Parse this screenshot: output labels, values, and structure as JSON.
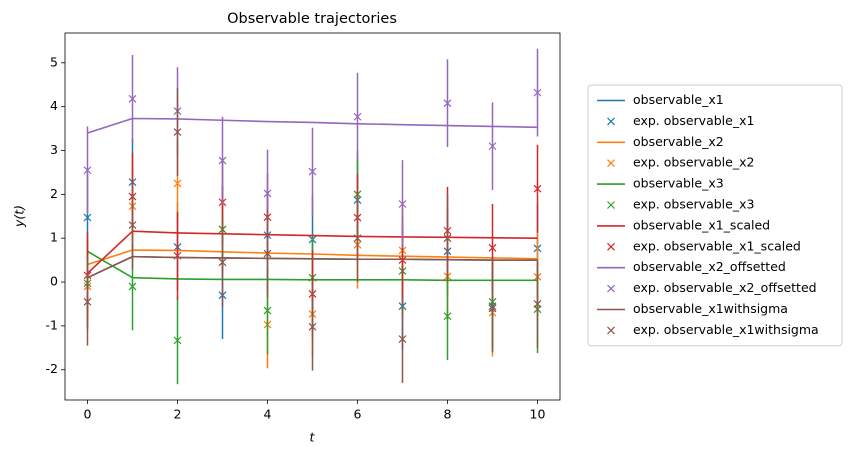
{
  "chart_data": {
    "type": "line",
    "title": "Observable trajectories",
    "xlabel": "t",
    "ylabel": "y(t)",
    "x": [
      0,
      1,
      2,
      3,
      4,
      5,
      6,
      7,
      8,
      9,
      10
    ],
    "xlim": [
      -0.5,
      10.5
    ],
    "ylim": [
      -2.69,
      5.68
    ],
    "xticks": [
      0,
      2,
      4,
      6,
      8,
      10
    ],
    "yticks": [
      -2,
      -1,
      0,
      1,
      2,
      3,
      4,
      5
    ],
    "legend": "outside right",
    "series": [
      {
        "name": "observable_x1",
        "color": "#1f77b4",
        "values": [
          0.1,
          0.58,
          0.56,
          0.55,
          0.54,
          0.53,
          0.52,
          0.52,
          0.51,
          0.5,
          0.5
        ]
      },
      {
        "name": "exp. observable_x1",
        "color": "#1f77b4",
        "marker": "x",
        "values": [
          1.47,
          2.28,
          0.8,
          -0.3,
          1.07,
          0.97,
          1.87,
          -0.55,
          0.7,
          -0.55,
          0.77
        ],
        "errors": [
          1,
          1,
          1,
          1,
          1,
          1,
          1,
          1,
          1,
          1,
          1
        ]
      },
      {
        "name": "observable_x2",
        "color": "#ff7f0e",
        "values": [
          0.4,
          0.73,
          0.72,
          0.69,
          0.66,
          0.64,
          0.61,
          0.59,
          0.57,
          0.55,
          0.53
        ]
      },
      {
        "name": "exp. observable_x2",
        "color": "#ff7f0e",
        "marker": "x",
        "values": [
          -0.1,
          1.73,
          2.25,
          1.2,
          -0.97,
          -0.73,
          0.85,
          0.72,
          0.13,
          -0.7,
          0.12
        ],
        "errors": [
          1,
          1,
          1,
          1,
          1,
          1,
          1,
          1,
          1,
          1,
          1
        ]
      },
      {
        "name": "observable_x3",
        "color": "#2ca02c",
        "values": [
          0.7,
          0.1,
          0.07,
          0.06,
          0.06,
          0.05,
          0.05,
          0.05,
          0.04,
          0.04,
          0.04
        ]
      },
      {
        "name": "exp. observable_x3",
        "color": "#2ca02c",
        "marker": "x",
        "values": [
          -0.03,
          -0.1,
          -1.33,
          1.2,
          -0.65,
          0.1,
          2.0,
          0.25,
          -0.78,
          -0.45,
          -0.62
        ],
        "errors": [
          1,
          1,
          1,
          1,
          1,
          1,
          1,
          1,
          1,
          1,
          1
        ]
      },
      {
        "name": "observable_x1_scaled",
        "color": "#d62728",
        "values": [
          0.2,
          1.16,
          1.12,
          1.1,
          1.08,
          1.06,
          1.04,
          1.03,
          1.02,
          1.01,
          1.0
        ]
      },
      {
        "name": "exp. observable_x1_scaled",
        "color": "#d62728",
        "marker": "x",
        "values": [
          0.15,
          1.95,
          0.6,
          1.82,
          1.48,
          -0.27,
          1.47,
          0.5,
          1.17,
          0.78,
          2.13
        ],
        "errors": [
          1,
          1,
          1,
          1,
          1,
          1,
          1,
          1,
          1,
          1,
          1
        ]
      },
      {
        "name": "observable_x2_offsetted",
        "color": "#9467bd",
        "values": [
          3.4,
          3.73,
          3.72,
          3.69,
          3.66,
          3.64,
          3.61,
          3.59,
          3.57,
          3.55,
          3.53
        ]
      },
      {
        "name": "exp. observable_x2_offsetted",
        "color": "#9467bd",
        "marker": "x",
        "values": [
          2.55,
          4.18,
          3.9,
          2.77,
          2.02,
          2.52,
          3.77,
          1.78,
          4.08,
          3.1,
          4.32
        ],
        "errors": [
          1,
          1,
          1,
          1,
          1,
          1,
          1,
          1,
          1,
          1,
          1
        ]
      },
      {
        "name": "observable_x1withsigma",
        "color": "#8c564b",
        "values": [
          0.1,
          0.58,
          0.56,
          0.55,
          0.54,
          0.53,
          0.52,
          0.52,
          0.51,
          0.5,
          0.5
        ]
      },
      {
        "name": "exp. observable_x1withsigma",
        "color": "#8c564b",
        "marker": "x",
        "values": [
          -0.45,
          1.3,
          3.42,
          0.45,
          0.65,
          -1.02,
          1.0,
          -1.3,
          1.0,
          -0.6,
          -0.5
        ],
        "errors": [
          1,
          1,
          1,
          1,
          1,
          1,
          1,
          1,
          1,
          1,
          1
        ]
      }
    ]
  }
}
